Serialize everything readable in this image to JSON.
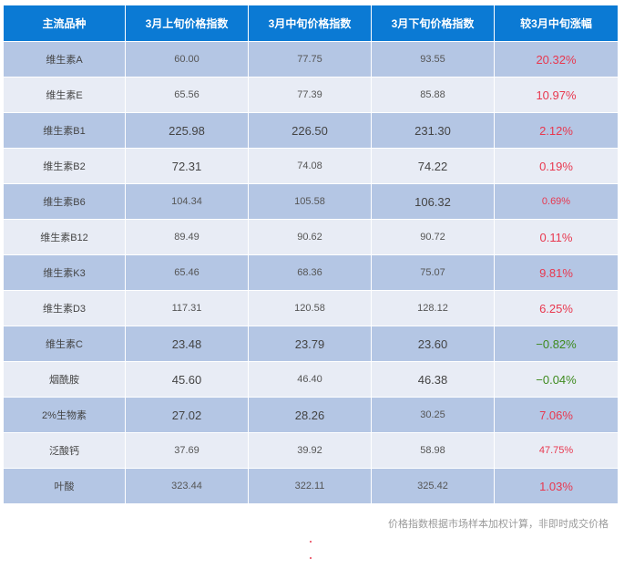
{
  "table": {
    "headers": [
      "主流品种",
      "3月上旬价格指数",
      "3月中旬价格指数",
      "3月下旬价格指数",
      "较3月中旬涨幅"
    ],
    "rows": [
      {
        "name": "维生素A",
        "early": "60.00",
        "mid": "77.75",
        "late": "93.55",
        "change": "20.32%",
        "dir": "up"
      },
      {
        "name": "维生素E",
        "early": "65.56",
        "mid": "77.39",
        "late": "85.88",
        "change": "10.97%",
        "dir": "up"
      },
      {
        "name": "维生素B1",
        "early": "225.98",
        "mid": "226.50",
        "late": "231.30",
        "change": "2.12%",
        "dir": "up"
      },
      {
        "name": "维生素B2",
        "early": "72.31",
        "mid": "74.08",
        "late": "74.22",
        "change": "0.19%",
        "dir": "up"
      },
      {
        "name": "维生素B6",
        "early": "104.34",
        "mid": "105.58",
        "late": "106.32",
        "change": "0.69%",
        "dir": "up"
      },
      {
        "name": "维生素B12",
        "early": "89.49",
        "mid": "90.62",
        "late": "90.72",
        "change": "0.11%",
        "dir": "up"
      },
      {
        "name": "维生素K3",
        "early": "65.46",
        "mid": "68.36",
        "late": "75.07",
        "change": "9.81%",
        "dir": "up"
      },
      {
        "name": "维生素D3",
        "early": "117.31",
        "mid": "120.58",
        "late": "128.12",
        "change": "6.25%",
        "dir": "up"
      },
      {
        "name": "维生素C",
        "early": "23.48",
        "mid": "23.79",
        "late": "23.60",
        "change": "−0.82%",
        "dir": "down"
      },
      {
        "name": "烟酰胺",
        "early": "45.60",
        "mid": "46.40",
        "late": "46.38",
        "change": "−0.04%",
        "dir": "down"
      },
      {
        "name": "2%生物素",
        "early": "27.02",
        "mid": "28.26",
        "late": "30.25",
        "change": "7.06%",
        "dir": "up"
      },
      {
        "name": "泛酸钙",
        "early": "37.69",
        "mid": "39.92",
        "late": "58.98",
        "change": "47.75%",
        "dir": "up"
      },
      {
        "name": "叶酸",
        "early": "323.44",
        "mid": "322.11",
        "late": "325.42",
        "change": "1.03%",
        "dir": "up"
      }
    ]
  },
  "footnote": "价格指数根据市场样本加权计算，非即时成交价格",
  "colors": {
    "header_bg": "#0b7ad4",
    "row_odd": "#b4c6e4",
    "row_even": "#e8ecf5",
    "up": "#e8384f",
    "down": "#3e8a1e"
  }
}
